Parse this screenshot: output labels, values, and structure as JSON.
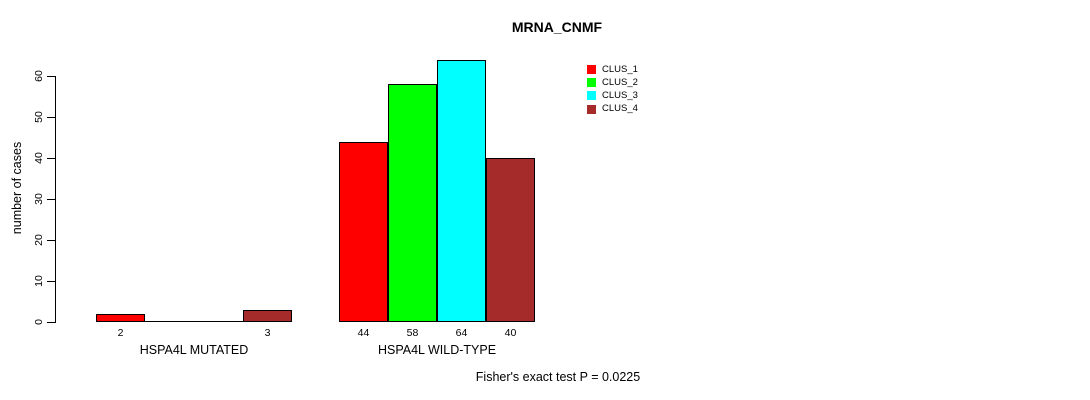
{
  "title": "MRNA_CNMF",
  "footer": "Fisher's exact test P = 0.0225",
  "chart_data": {
    "type": "bar",
    "title": "MRNA_CNMF",
    "xlabel": "",
    "ylabel": "number of cases",
    "categories": [
      "HSPA4L MUTATED",
      "HSPA4L WILD-TYPE"
    ],
    "series": [
      {
        "name": "CLUS_1",
        "color": "#FF0000",
        "values": [
          2,
          44
        ]
      },
      {
        "name": "CLUS_2",
        "color": "#00FF00",
        "values": [
          0,
          58
        ]
      },
      {
        "name": "CLUS_3",
        "color": "#00FFFF",
        "values": [
          0,
          64
        ]
      },
      {
        "name": "CLUS_4",
        "color": "#A52A2A",
        "values": [
          3,
          40
        ]
      }
    ],
    "bar_value_labels_visible": [
      [
        2,
        null,
        null,
        3
      ],
      [
        44,
        58,
        64,
        40
      ]
    ],
    "y_ticks": [
      0,
      10,
      20,
      30,
      40,
      50,
      60
    ],
    "ylim": [
      0,
      66
    ],
    "grid": false,
    "legend_position": "top-right",
    "legend_entries": [
      "CLUS_1",
      "CLUS_2",
      "CLUS_3",
      "CLUS_4"
    ],
    "annotation": "Fisher's exact test P = 0.0225"
  }
}
